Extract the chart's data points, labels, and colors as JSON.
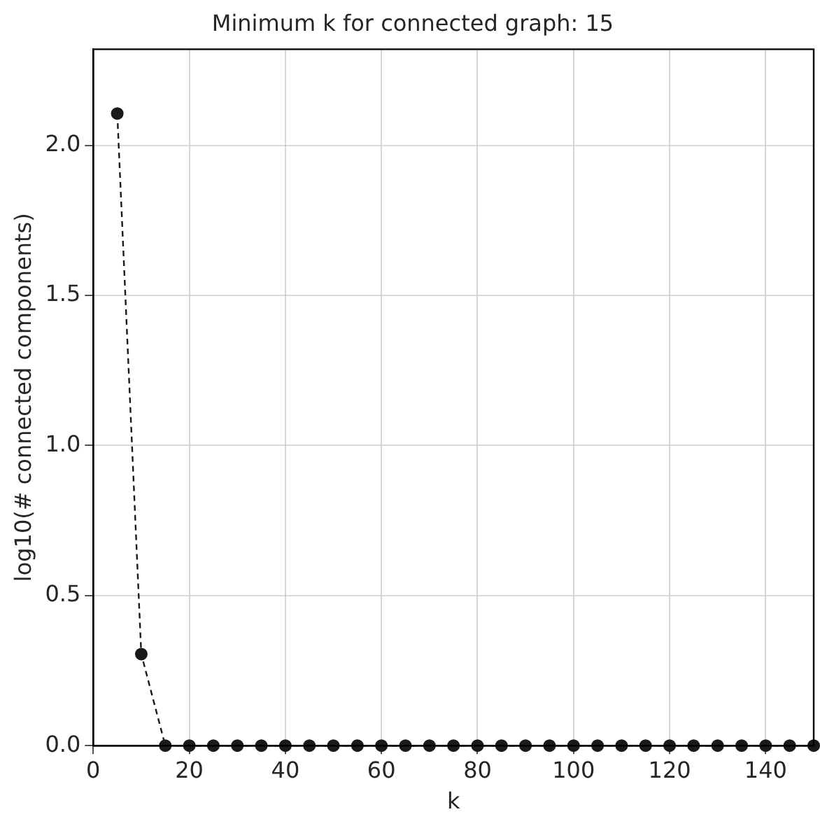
{
  "chart_data": {
    "type": "line",
    "title": "Minimum k for connected graph: 15",
    "xlabel": "k",
    "ylabel": "log10(# connected components)",
    "x": [
      5,
      10,
      15,
      20,
      25,
      30,
      35,
      40,
      45,
      50,
      55,
      60,
      65,
      70,
      75,
      80,
      85,
      90,
      95,
      100,
      105,
      110,
      115,
      120,
      125,
      130,
      135,
      140,
      145,
      150
    ],
    "series": [
      {
        "color": "#1a1a1a",
        "values": [
          2.106,
          0.305,
          0,
          0,
          0,
          0,
          0,
          0,
          0,
          0,
          0,
          0,
          0,
          0,
          0,
          0,
          0,
          0,
          0,
          0,
          0,
          0,
          0,
          0,
          0,
          0,
          0,
          0,
          0,
          0
        ]
      }
    ],
    "xlim": [
      0,
      150
    ],
    "xticks": [
      0,
      20,
      40,
      60,
      80,
      100,
      120,
      140
    ],
    "ylim": [
      0,
      2.32
    ],
    "yticks": [
      {
        "value": 0,
        "label": "0.0"
      },
      {
        "value": 0.5,
        "label": "0.5"
      },
      {
        "value": 1,
        "label": "1.0"
      },
      {
        "value": 1.5,
        "label": "1.5"
      },
      {
        "value": 2,
        "label": "2.0"
      }
    ],
    "grid": true,
    "marker": "circle",
    "line_style": "dashed"
  }
}
